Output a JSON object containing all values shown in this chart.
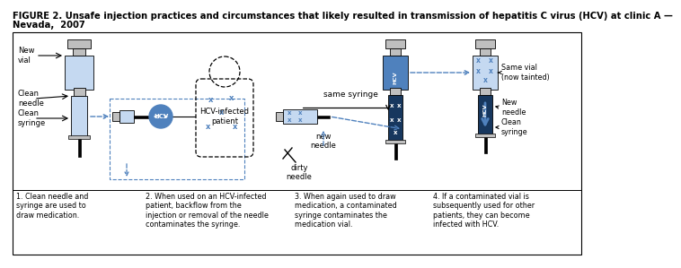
{
  "title_line1": "FIGURE 2. Unsafe injection practices and circumstances that likely resulted in transmission of hepatitis C virus (HCV) at clinic A —",
  "title_line2": "Nevada,  2007",
  "title_fontsize": 7.2,
  "caption1": "1. Clean needle and\nsyringe are used to\ndraw medication.",
  "caption2": "2. When used on an HCV-infected\npatient, backflow from the\ninjection or removal of the needle\ncontaminates the syringe.",
  "caption3": "3. When again used to draw\nmedication, a contaminated\nsyringe contaminates the\nmedication vial.",
  "caption4": "4. If a contaminated vial is\nsubsequently used for other\npatients, they can become\ninfected with HCV.",
  "label_new_vial": "New\nvial",
  "label_clean_needle": "Clean\nneedle",
  "label_clean_syringe": "Clean\nsyringe",
  "label_hcv_patient": "HCV-infected\npatient",
  "label_same_syringe": "same syringe",
  "label_new_needle": "new\nneedle",
  "label_dirty_needle": "dirty\nneedle",
  "label_same_vial": "Same vial\n(now tainted)",
  "label_new_needle2": "New\nneedle",
  "label_clean_syringe2": "Clean\nsyringe",
  "blue_light": "#c5d9f1",
  "blue_dark": "#17375e",
  "blue_mid": "#4f81bd",
  "gray_light": "#bfbfbf",
  "gray_mid": "#808080",
  "black": "#000000",
  "white": "#ffffff",
  "bg": "#ffffff"
}
